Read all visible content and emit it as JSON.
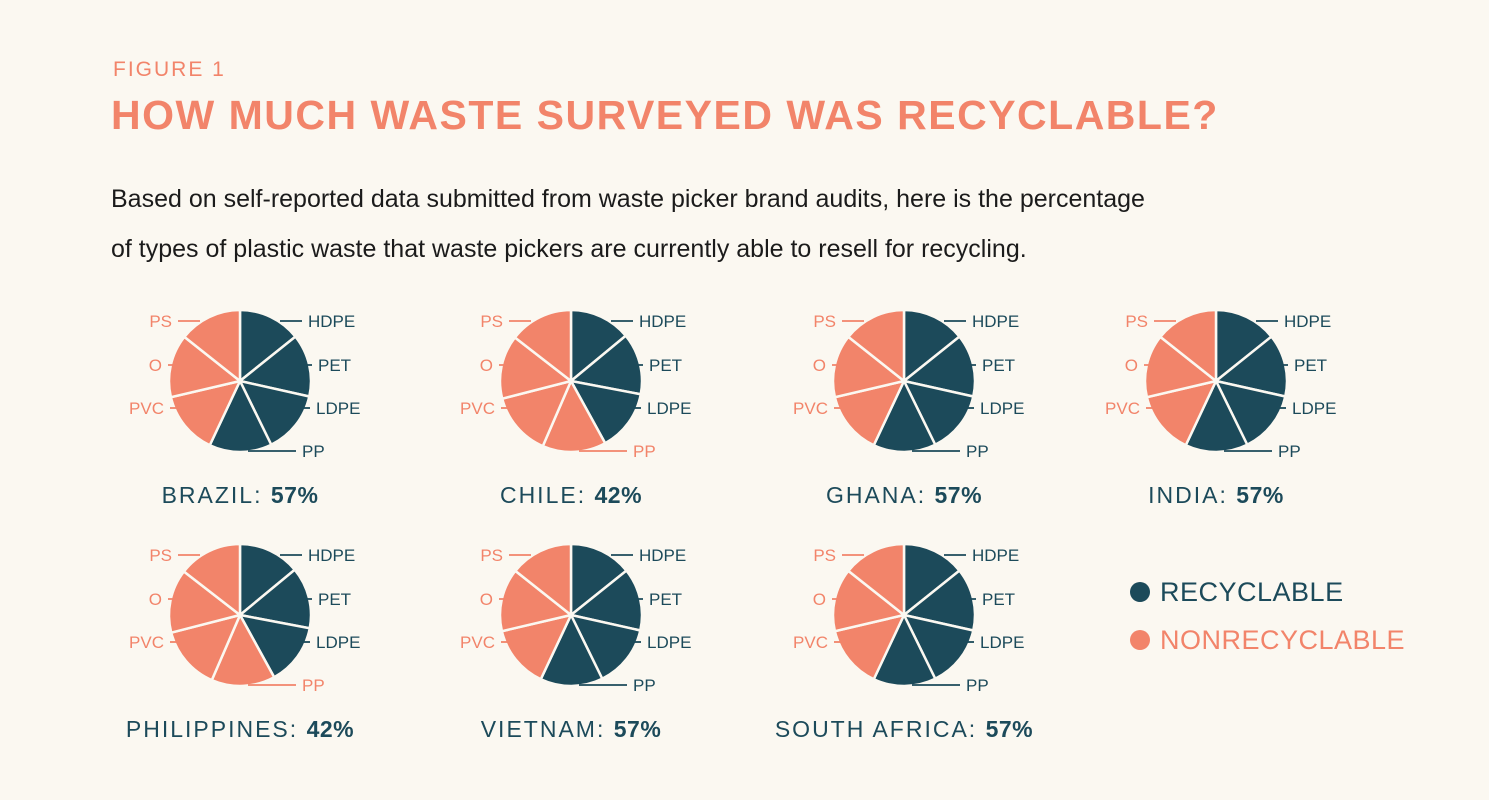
{
  "header": {
    "figure_label": "FIGURE 1",
    "title": "HOW MUCH WASTE SURVEYED WAS RECYCLABLE?",
    "subtitle_line1": "Based on self-reported data submitted from waste picker brand audits, here is the percentage",
    "subtitle_line2": "of types of plastic waste that waste pickers are currently able to resell for recycling."
  },
  "colors": {
    "recyclable": "#1c4a5a",
    "nonrecyclable": "#f2846a"
  },
  "legend": [
    {
      "label": "RECYCLABLE",
      "status": "recyclable"
    },
    {
      "label": "NONRECYCLABLE",
      "status": "nonrecyclable"
    }
  ],
  "chart_data": [
    {
      "type": "pie",
      "title": "BRAZIL",
      "percent_label": "57%",
      "recyclable_percent": 57,
      "slices": [
        {
          "label": "HDPE",
          "status": "recyclable"
        },
        {
          "label": "PET",
          "status": "recyclable"
        },
        {
          "label": "LDPE",
          "status": "recyclable"
        },
        {
          "label": "PP",
          "status": "recyclable"
        },
        {
          "label": "PVC",
          "status": "nonrecyclable"
        },
        {
          "label": "O",
          "status": "nonrecyclable"
        },
        {
          "label": "PS",
          "status": "nonrecyclable"
        }
      ]
    },
    {
      "type": "pie",
      "title": "CHILE",
      "percent_label": "42%",
      "recyclable_percent": 42,
      "slices": [
        {
          "label": "HDPE",
          "status": "recyclable"
        },
        {
          "label": "PET",
          "status": "recyclable"
        },
        {
          "label": "LDPE",
          "status": "recyclable"
        },
        {
          "label": "PP",
          "status": "nonrecyclable"
        },
        {
          "label": "PVC",
          "status": "nonrecyclable"
        },
        {
          "label": "O",
          "status": "nonrecyclable"
        },
        {
          "label": "PS",
          "status": "nonrecyclable"
        }
      ]
    },
    {
      "type": "pie",
      "title": "GHANA",
      "percent_label": "57%",
      "recyclable_percent": 57,
      "slices": [
        {
          "label": "HDPE",
          "status": "recyclable"
        },
        {
          "label": "PET",
          "status": "recyclable"
        },
        {
          "label": "LDPE",
          "status": "recyclable"
        },
        {
          "label": "PP",
          "status": "recyclable"
        },
        {
          "label": "PVC",
          "status": "nonrecyclable"
        },
        {
          "label": "O",
          "status": "nonrecyclable"
        },
        {
          "label": "PS",
          "status": "nonrecyclable"
        }
      ]
    },
    {
      "type": "pie",
      "title": "INDIA",
      "percent_label": "57%",
      "recyclable_percent": 57,
      "slices": [
        {
          "label": "HDPE",
          "status": "recyclable"
        },
        {
          "label": "PET",
          "status": "recyclable"
        },
        {
          "label": "LDPE",
          "status": "recyclable"
        },
        {
          "label": "PP",
          "status": "recyclable"
        },
        {
          "label": "PVC",
          "status": "nonrecyclable"
        },
        {
          "label": "O",
          "status": "nonrecyclable"
        },
        {
          "label": "PS",
          "status": "nonrecyclable"
        }
      ]
    },
    {
      "type": "pie",
      "title": "PHILIPPINES",
      "percent_label": "42%",
      "recyclable_percent": 42,
      "slices": [
        {
          "label": "HDPE",
          "status": "recyclable"
        },
        {
          "label": "PET",
          "status": "recyclable"
        },
        {
          "label": "LDPE",
          "status": "recyclable"
        },
        {
          "label": "PP",
          "status": "nonrecyclable"
        },
        {
          "label": "PVC",
          "status": "nonrecyclable"
        },
        {
          "label": "O",
          "status": "nonrecyclable"
        },
        {
          "label": "PS",
          "status": "nonrecyclable"
        }
      ]
    },
    {
      "type": "pie",
      "title": "VIETNAM",
      "percent_label": "57%",
      "recyclable_percent": 57,
      "slices": [
        {
          "label": "HDPE",
          "status": "recyclable"
        },
        {
          "label": "PET",
          "status": "recyclable"
        },
        {
          "label": "LDPE",
          "status": "recyclable"
        },
        {
          "label": "PP",
          "status": "recyclable"
        },
        {
          "label": "PVC",
          "status": "nonrecyclable"
        },
        {
          "label": "O",
          "status": "nonrecyclable"
        },
        {
          "label": "PS",
          "status": "nonrecyclable"
        }
      ]
    },
    {
      "type": "pie",
      "title": "SOUTH AFRICA",
      "percent_label": "57%",
      "recyclable_percent": 57,
      "slices": [
        {
          "label": "HDPE",
          "status": "recyclable"
        },
        {
          "label": "PET",
          "status": "recyclable"
        },
        {
          "label": "LDPE",
          "status": "recyclable"
        },
        {
          "label": "PP",
          "status": "recyclable"
        },
        {
          "label": "PVC",
          "status": "nonrecyclable"
        },
        {
          "label": "O",
          "status": "nonrecyclable"
        },
        {
          "label": "PS",
          "status": "nonrecyclable"
        }
      ]
    }
  ]
}
